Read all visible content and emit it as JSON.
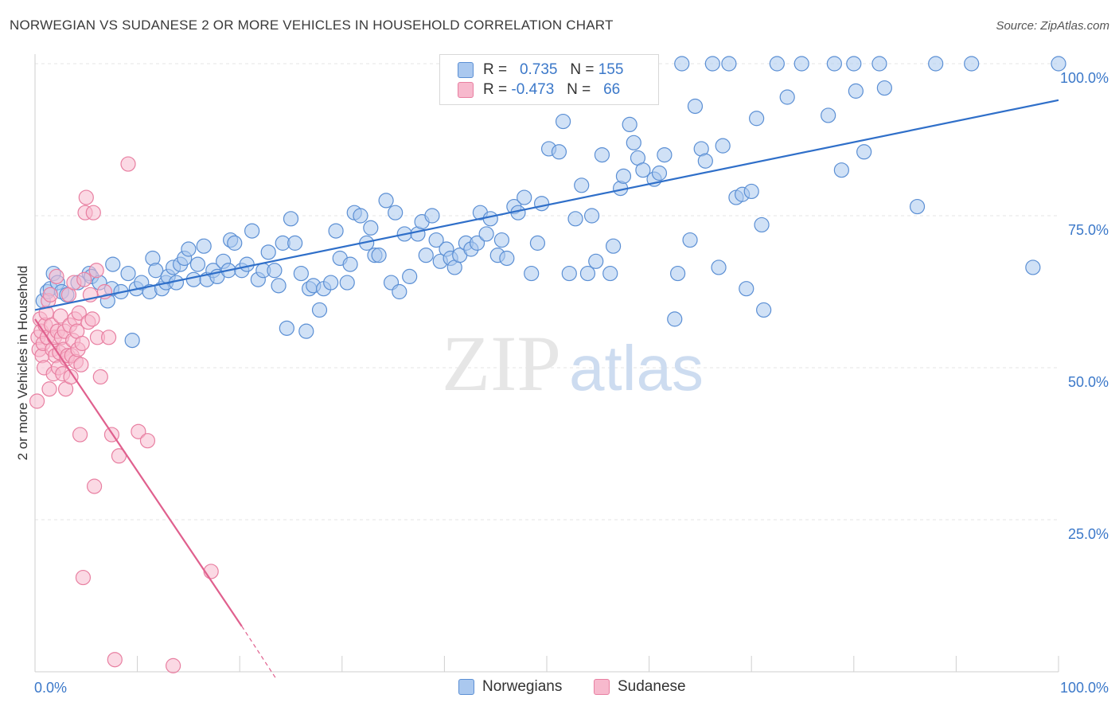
{
  "title": "NORWEGIAN VS SUDANESE 2 OR MORE VEHICLES IN HOUSEHOLD CORRELATION CHART",
  "source": "Source: ZipAtlas.com",
  "watermark": {
    "zip": "ZIP",
    "atlas": "atlas"
  },
  "legend_stats": [
    {
      "r_label": "R =",
      "r_value": "0.735",
      "n_label": "N =",
      "n_value": "155"
    },
    {
      "r_label": "R =",
      "r_value": "-0.473",
      "n_label": "N =",
      "n_value": "66"
    }
  ],
  "colors": {
    "norwegians_fill": "#aac8ef",
    "norwegians_stroke": "#5b8fd4",
    "norwegians_line": "#2f6fc9",
    "sudanese_fill": "#f7b9cd",
    "sudanese_stroke": "#e87fa1",
    "sudanese_line": "#e0608e",
    "axis_text": "#3b78c9",
    "grid": "#e6e6e6"
  },
  "chart_data": {
    "type": "scatter",
    "title": "NORWEGIAN VS SUDANESE 2 OR MORE VEHICLES IN HOUSEHOLD CORRELATION CHART",
    "xlabel": "",
    "ylabel": "2 or more Vehicles in Household",
    "xlim": [
      0,
      100
    ],
    "ylim": [
      0,
      100
    ],
    "x_tick_labels": [
      "0.0%",
      "100.0%"
    ],
    "y_tick_labels": [
      "100.0%",
      "75.0%",
      "50.0%",
      "25.0%"
    ],
    "y_ticks": [
      100,
      75,
      50,
      25
    ],
    "grid": true,
    "legend": {
      "placement": "top-center"
    },
    "series": [
      {
        "name": "Norwegians",
        "trend": {
          "x": [
            0,
            100
          ],
          "y": [
            59.5,
            94.0
          ]
        },
        "points": [
          [
            0.8,
            61
          ],
          [
            1.2,
            62.5
          ],
          [
            1.5,
            63
          ],
          [
            1.8,
            65.5
          ],
          [
            2.2,
            64
          ],
          [
            2.6,
            62.5
          ],
          [
            3.1,
            62
          ],
          [
            4.2,
            64
          ],
          [
            5.3,
            65.5
          ],
          [
            5.5,
            65
          ],
          [
            6.3,
            64
          ],
          [
            7.1,
            61
          ],
          [
            7.5,
            63
          ],
          [
            7.6,
            67
          ],
          [
            8.4,
            62.5
          ],
          [
            9.1,
            65.5
          ],
          [
            9.5,
            54.5
          ],
          [
            9.9,
            63
          ],
          [
            10.4,
            64
          ],
          [
            11.2,
            62.5
          ],
          [
            11.5,
            68
          ],
          [
            11.8,
            66
          ],
          [
            12.4,
            63
          ],
          [
            12.8,
            64
          ],
          [
            13,
            65
          ],
          [
            13.5,
            66.5
          ],
          [
            13.8,
            64
          ],
          [
            14.2,
            67
          ],
          [
            14.6,
            68
          ],
          [
            15,
            69.5
          ],
          [
            15.5,
            64.5
          ],
          [
            15.9,
            67
          ],
          [
            16.5,
            70
          ],
          [
            16.8,
            64.5
          ],
          [
            17.4,
            66
          ],
          [
            17.8,
            65
          ],
          [
            18.4,
            67.5
          ],
          [
            18.9,
            66
          ],
          [
            19.1,
            71
          ],
          [
            19.5,
            70.5
          ],
          [
            20.2,
            66
          ],
          [
            20.7,
            67
          ],
          [
            21.2,
            72.5
          ],
          [
            21.8,
            64.5
          ],
          [
            22.3,
            66
          ],
          [
            22.8,
            69
          ],
          [
            23.4,
            66
          ],
          [
            23.8,
            63.5
          ],
          [
            24.2,
            70.5
          ],
          [
            24.6,
            56.5
          ],
          [
            25,
            74.5
          ],
          [
            25.4,
            70.5
          ],
          [
            26,
            65.5
          ],
          [
            26.5,
            56
          ],
          [
            26.8,
            63
          ],
          [
            27.2,
            63.5
          ],
          [
            27.8,
            59.5
          ],
          [
            28.2,
            63
          ],
          [
            28.9,
            64
          ],
          [
            29.4,
            72.5
          ],
          [
            29.8,
            68
          ],
          [
            30.5,
            64
          ],
          [
            30.8,
            67
          ],
          [
            31.2,
            75.5
          ],
          [
            31.8,
            75
          ],
          [
            32.4,
            70.5
          ],
          [
            32.8,
            73
          ],
          [
            33.2,
            68.5
          ],
          [
            33.6,
            68.5
          ],
          [
            34.3,
            77.5
          ],
          [
            34.8,
            64
          ],
          [
            35.2,
            75.5
          ],
          [
            35.6,
            62.5
          ],
          [
            36.1,
            72
          ],
          [
            36.6,
            65
          ],
          [
            37.4,
            72
          ],
          [
            37.8,
            74
          ],
          [
            38.2,
            68.5
          ],
          [
            38.8,
            75
          ],
          [
            39.2,
            71
          ],
          [
            39.6,
            67.5
          ],
          [
            40.2,
            69.5
          ],
          [
            40.6,
            68
          ],
          [
            41,
            66.5
          ],
          [
            41.5,
            68.5
          ],
          [
            42.1,
            70.5
          ],
          [
            42.6,
            69.5
          ],
          [
            43.2,
            70.5
          ],
          [
            43.5,
            75.5
          ],
          [
            44.1,
            72
          ],
          [
            44.5,
            74.5
          ],
          [
            45.2,
            68.5
          ],
          [
            45.6,
            71
          ],
          [
            46.1,
            68
          ],
          [
            46.8,
            76.5
          ],
          [
            47.2,
            75.5
          ],
          [
            47.8,
            78
          ],
          [
            48.5,
            65.5
          ],
          [
            49.1,
            70.5
          ],
          [
            49.5,
            77
          ],
          [
            50.2,
            86
          ],
          [
            51.2,
            85.5
          ],
          [
            51.6,
            90.5
          ],
          [
            52.2,
            65.5
          ],
          [
            52.8,
            74.5
          ],
          [
            53.4,
            80
          ],
          [
            54,
            65.5
          ],
          [
            54.4,
            75
          ],
          [
            54.8,
            67.5
          ],
          [
            55.4,
            85
          ],
          [
            56.2,
            65.5
          ],
          [
            56.5,
            70
          ],
          [
            57.2,
            79.5
          ],
          [
            57.5,
            81.5
          ],
          [
            58.1,
            90
          ],
          [
            58.5,
            87
          ],
          [
            58.9,
            84.5
          ],
          [
            59.4,
            82.5
          ],
          [
            60.1,
            100
          ],
          [
            60.5,
            81
          ],
          [
            61,
            82
          ],
          [
            61.5,
            85
          ],
          [
            62.5,
            58
          ],
          [
            62.8,
            65.5
          ],
          [
            63.2,
            100
          ],
          [
            64,
            71
          ],
          [
            64.5,
            93
          ],
          [
            65.1,
            86
          ],
          [
            65.5,
            84
          ],
          [
            66.2,
            100
          ],
          [
            66.8,
            66.5
          ],
          [
            67.2,
            86.5
          ],
          [
            67.8,
            100
          ],
          [
            68.5,
            78
          ],
          [
            69.1,
            78.5
          ],
          [
            69.5,
            63
          ],
          [
            70,
            79
          ],
          [
            70.5,
            91
          ],
          [
            71,
            73.5
          ],
          [
            71.2,
            59.5
          ],
          [
            72.5,
            100
          ],
          [
            73.5,
            94.5
          ],
          [
            74.9,
            100
          ],
          [
            77.5,
            91.5
          ],
          [
            78.1,
            100
          ],
          [
            78.8,
            82.5
          ],
          [
            80,
            100
          ],
          [
            80.2,
            95.5
          ],
          [
            81,
            85.5
          ],
          [
            82.5,
            100
          ],
          [
            83,
            96
          ],
          [
            86.2,
            76.5
          ],
          [
            88,
            100
          ],
          [
            91.5,
            100
          ],
          [
            97.5,
            66.5
          ],
          [
            100,
            100
          ]
        ]
      },
      {
        "name": "Sudanese",
        "trend": {
          "x": [
            0,
            20.2
          ],
          "y": [
            58,
            7.5
          ]
        },
        "trend_dashed": {
          "x": [
            20.2,
            23.5
          ],
          "y": [
            7.5,
            -1
          ]
        },
        "points": [
          [
            0.2,
            44.5
          ],
          [
            0.3,
            55
          ],
          [
            0.4,
            53
          ],
          [
            0.5,
            58
          ],
          [
            0.6,
            56
          ],
          [
            0.7,
            52
          ],
          [
            0.8,
            54
          ],
          [
            0.9,
            50
          ],
          [
            1,
            57
          ],
          [
            1.1,
            59
          ],
          [
            1.2,
            55
          ],
          [
            1.3,
            61
          ],
          [
            1.4,
            46.5
          ],
          [
            1.5,
            62
          ],
          [
            1.6,
            57
          ],
          [
            1.7,
            53
          ],
          [
            1.8,
            49
          ],
          [
            1.9,
            55
          ],
          [
            2,
            52
          ],
          [
            2.1,
            65
          ],
          [
            2.2,
            56
          ],
          [
            2.3,
            50
          ],
          [
            2.4,
            52.5
          ],
          [
            2.5,
            58.5
          ],
          [
            2.6,
            55
          ],
          [
            2.7,
            49
          ],
          [
            2.8,
            53
          ],
          [
            2.9,
            56
          ],
          [
            3,
            46.5
          ],
          [
            3.1,
            51.5
          ],
          [
            3.2,
            52
          ],
          [
            3.3,
            62
          ],
          [
            3.4,
            57
          ],
          [
            3.5,
            48.5
          ],
          [
            3.6,
            52
          ],
          [
            3.7,
            54.5
          ],
          [
            3.8,
            64
          ],
          [
            3.9,
            58
          ],
          [
            4,
            51
          ],
          [
            4.1,
            56
          ],
          [
            4.2,
            53
          ],
          [
            4.3,
            59
          ],
          [
            4.4,
            39
          ],
          [
            4.5,
            50.5
          ],
          [
            4.6,
            54
          ],
          [
            4.7,
            15.5
          ],
          [
            4.8,
            64.5
          ],
          [
            4.9,
            75.5
          ],
          [
            5,
            78
          ],
          [
            5.2,
            57.5
          ],
          [
            5.4,
            62
          ],
          [
            5.6,
            58
          ],
          [
            5.7,
            75.5
          ],
          [
            5.8,
            30.5
          ],
          [
            6,
            66
          ],
          [
            6.1,
            55
          ],
          [
            6.4,
            48.5
          ],
          [
            6.8,
            62.5
          ],
          [
            7.2,
            55
          ],
          [
            7.5,
            39
          ],
          [
            7.8,
            2
          ],
          [
            8.2,
            35.5
          ],
          [
            9.1,
            83.5
          ],
          [
            10.1,
            39.5
          ],
          [
            11,
            38
          ],
          [
            13.5,
            1
          ],
          [
            17.2,
            16.5
          ]
        ]
      }
    ]
  }
}
